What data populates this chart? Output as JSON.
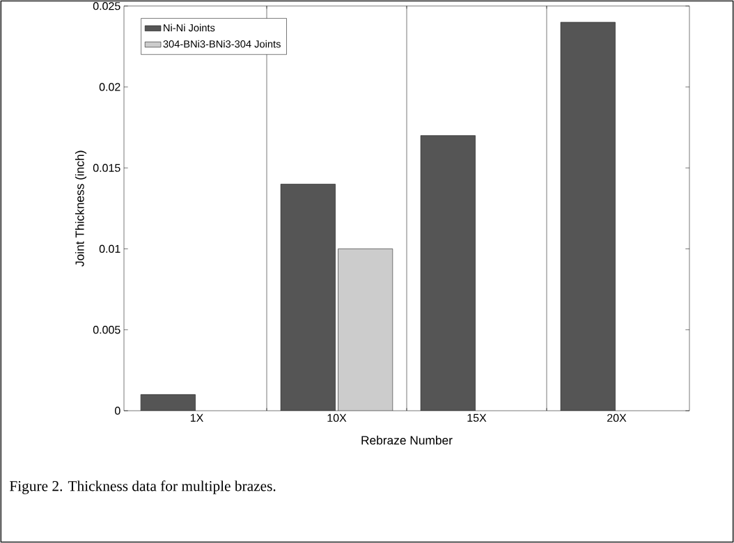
{
  "chart_data": {
    "type": "bar",
    "categories": [
      "1X",
      "10X",
      "15X",
      "20X"
    ],
    "series": [
      {
        "name": "Ni-Ni Joints",
        "color": "#555555",
        "values": [
          0.001,
          0.014,
          0.017,
          0.024
        ]
      },
      {
        "name": "304-BNi3-BNi3-304 Joints",
        "color": "#cccccc",
        "values": [
          null,
          0.01,
          null,
          null
        ]
      }
    ],
    "xlabel": "Rebraze Number",
    "ylabel": "Joint Thickness (inch)",
    "ylim": [
      0,
      0.025
    ],
    "yticks": [
      0,
      0.005,
      0.01,
      0.015,
      0.02,
      0.025
    ],
    "grid": "x",
    "legend": "top left",
    "annotations": [
      "Figure 2.  Thickness data for multiple brazes."
    ]
  }
}
